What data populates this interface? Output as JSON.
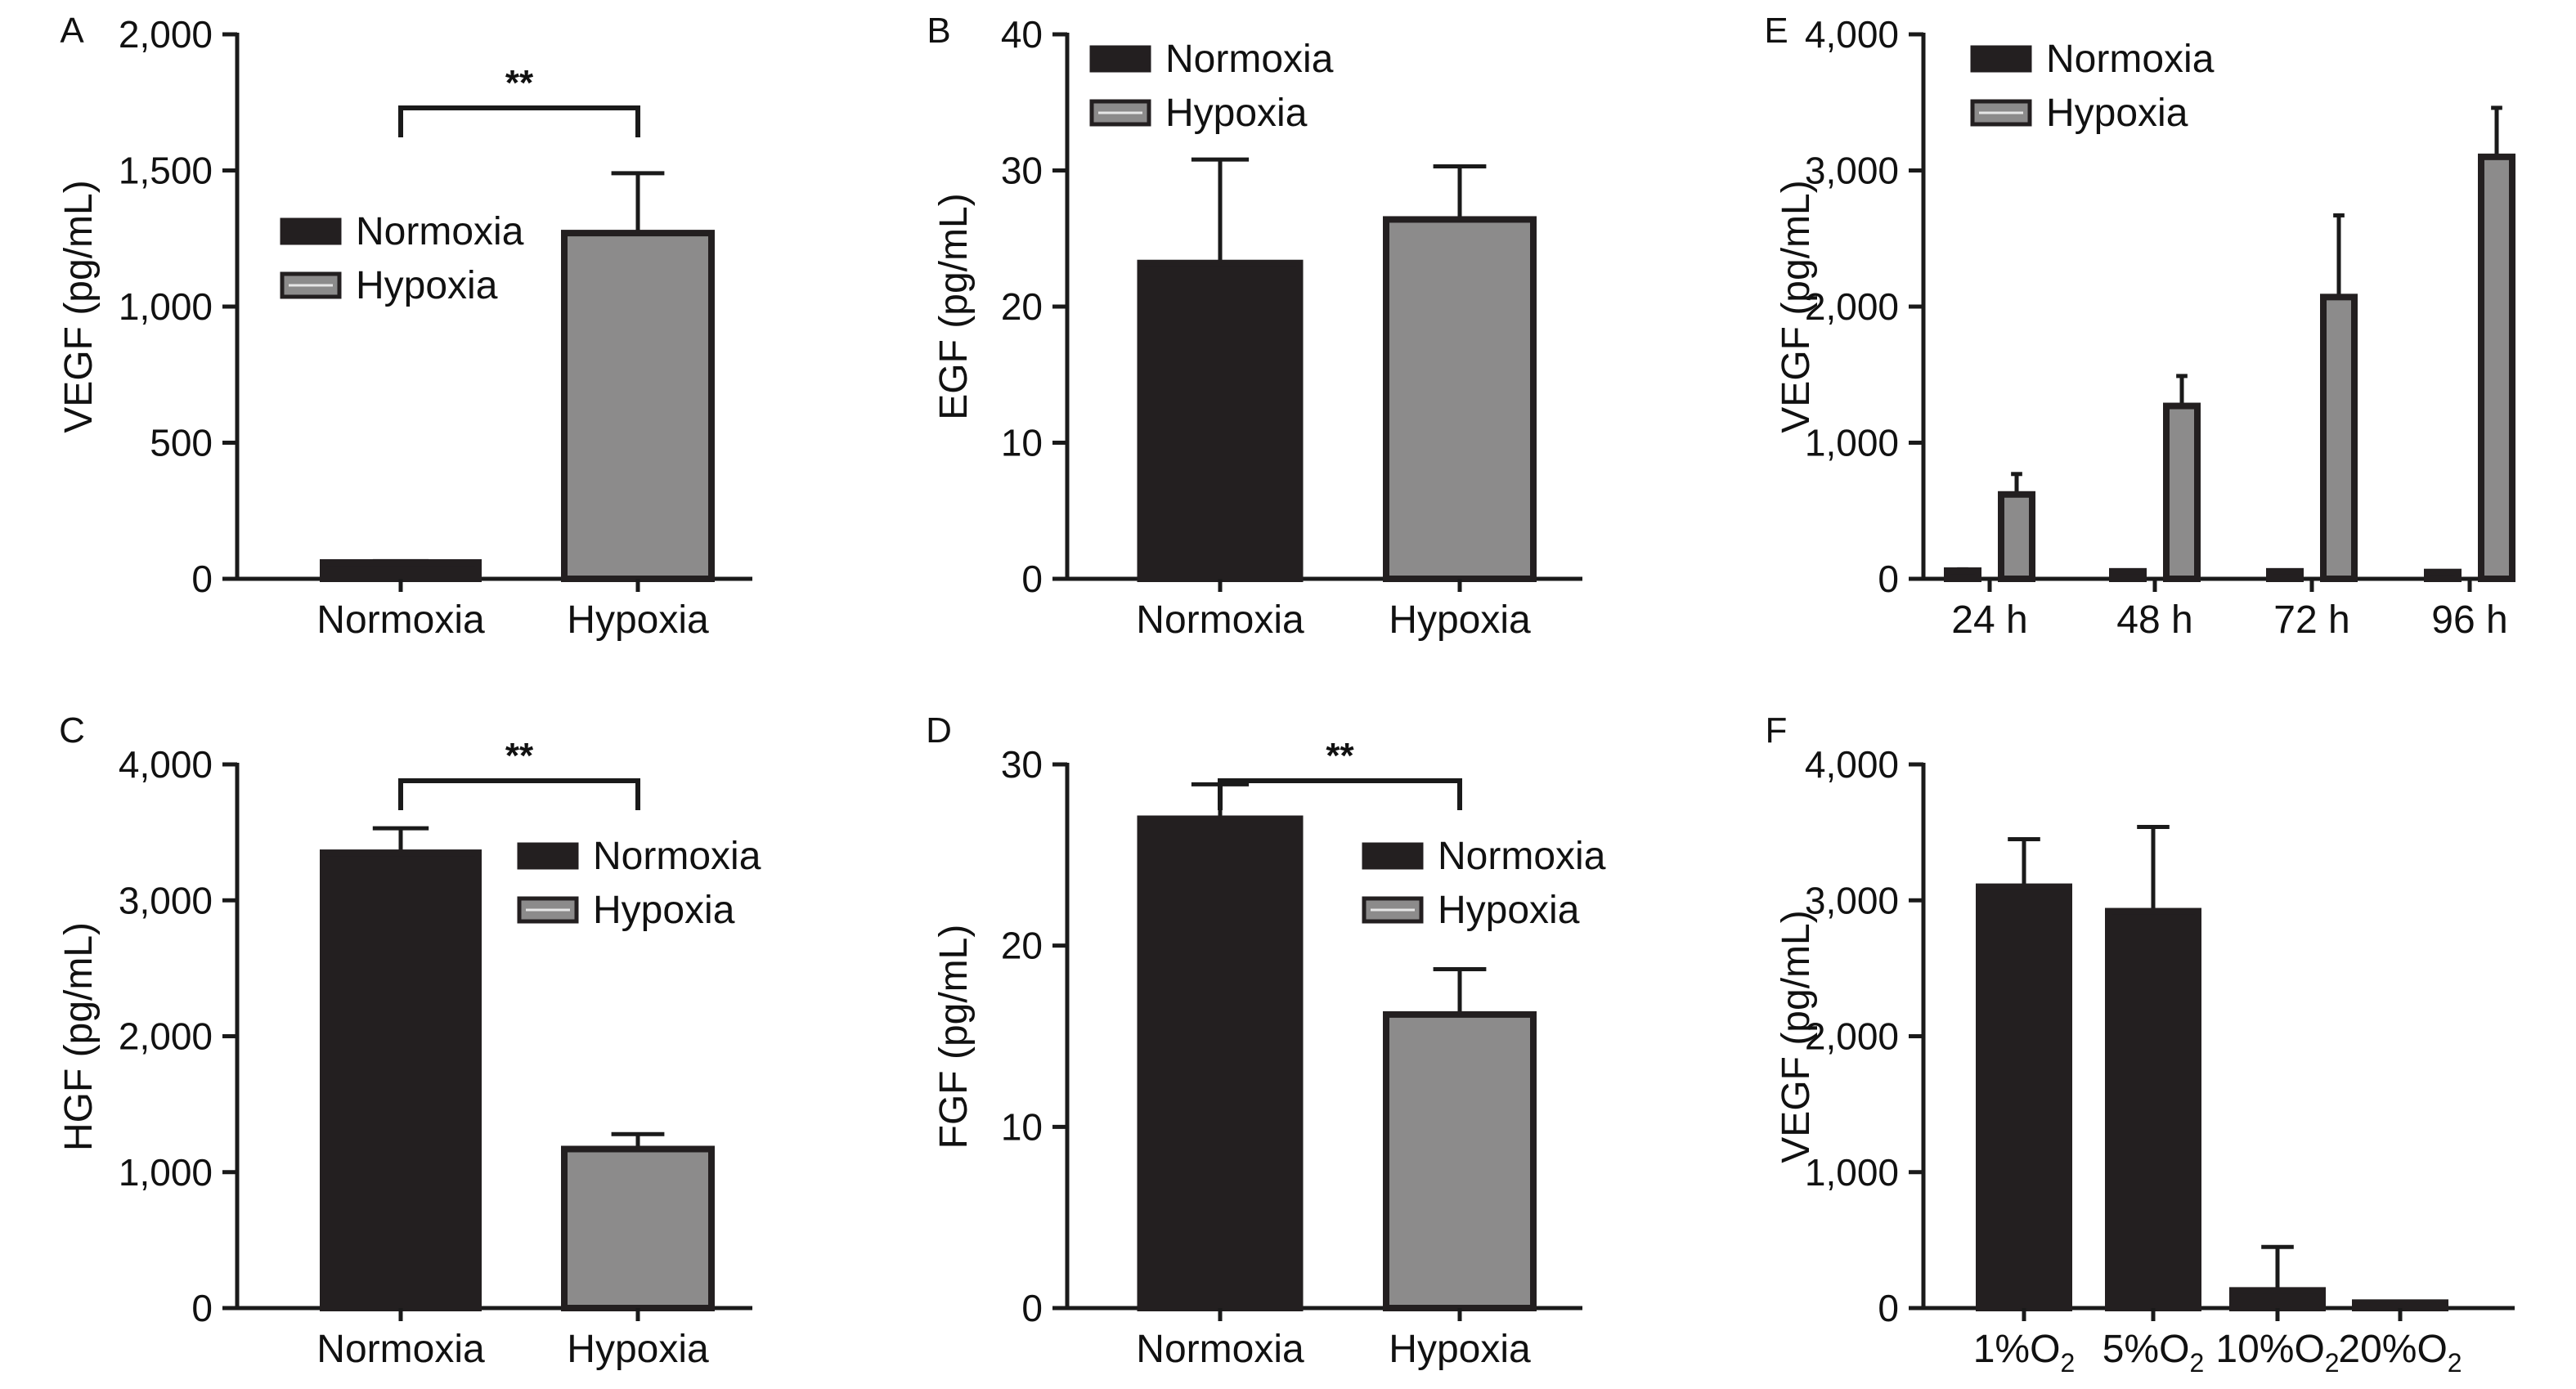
{
  "colors": {
    "dark_bar": "#231f20",
    "light_bar": "#8c8b8b",
    "outline": "#231f20"
  },
  "chart_data": [
    {
      "id": "A",
      "type": "bar",
      "letter": "A",
      "categories": [
        "Normoxia",
        "Hypoxia"
      ],
      "values": [
        60,
        1270
      ],
      "errors": [
        5,
        220
      ],
      "fills": [
        "dark",
        "light"
      ],
      "ylabel": "VEGF (pg/mL)",
      "ylim": [
        0,
        2000
      ],
      "yticks": [
        0,
        500,
        1000,
        1500,
        2000
      ],
      "ytick_labels": [
        "0",
        "500",
        "1,000",
        "1,500",
        "2,000"
      ],
      "legend": [
        "Normoxia",
        "Hypoxia"
      ],
      "legend_position": "center-left",
      "significance": {
        "label": "**",
        "between": [
          0,
          1
        ]
      },
      "grid": false
    },
    {
      "id": "B",
      "type": "bar",
      "letter": "B",
      "categories": [
        "Normoxia",
        "Hypoxia"
      ],
      "values": [
        23.2,
        26.4
      ],
      "errors": [
        7.6,
        3.9
      ],
      "fills": [
        "dark",
        "light"
      ],
      "ylabel": "EGF (pg/mL)",
      "ylim": [
        0,
        40
      ],
      "yticks": [
        0,
        10,
        20,
        30,
        40
      ],
      "ytick_labels": [
        "0",
        "10",
        "20",
        "30",
        "40"
      ],
      "legend": [
        "Normoxia",
        "Hypoxia"
      ],
      "legend_position": "top-left",
      "grid": false
    },
    {
      "id": "E",
      "type": "bar",
      "letter": "E",
      "categories": [
        "24 h",
        "48 h",
        "72 h",
        "96 h"
      ],
      "series": [
        {
          "name": "Normoxia",
          "values": [
            60,
            55,
            55,
            50
          ],
          "errors": [
            10,
            5,
            8,
            5
          ],
          "fill": "dark"
        },
        {
          "name": "Hypoxia",
          "values": [
            620,
            1270,
            2070,
            3100
          ],
          "errors": [
            150,
            220,
            600,
            360
          ],
          "fill": "light"
        }
      ],
      "ylabel": "VEGF (pg/mL)",
      "ylim": [
        0,
        4000
      ],
      "yticks": [
        0,
        1000,
        2000,
        3000,
        4000
      ],
      "ytick_labels": [
        "0",
        "1,000",
        "2,000",
        "3,000",
        "4,000"
      ],
      "legend": [
        "Normoxia",
        "Hypoxia"
      ],
      "legend_position": "top-left",
      "grid": false
    },
    {
      "id": "C",
      "type": "bar",
      "letter": "C",
      "categories": [
        "Normoxia",
        "Hypoxia"
      ],
      "values": [
        3350,
        1170
      ],
      "errors": [
        180,
        110
      ],
      "fills": [
        "dark",
        "light"
      ],
      "ylabel": "HGF (pg/mL)",
      "ylim": [
        0,
        4000
      ],
      "yticks": [
        0,
        1000,
        2000,
        3000,
        4000
      ],
      "ytick_labels": [
        "0",
        "1,000",
        "2,000",
        "3,000",
        "4,000"
      ],
      "legend": [
        "Normoxia",
        "Hypoxia"
      ],
      "legend_position": "center-right",
      "significance": {
        "label": "**",
        "between": [
          0,
          1
        ]
      },
      "grid": false
    },
    {
      "id": "D",
      "type": "bar",
      "letter": "D",
      "categories": [
        "Normoxia",
        "Hypoxia"
      ],
      "values": [
        27.0,
        16.2
      ],
      "errors": [
        1.9,
        2.5
      ],
      "fills": [
        "dark",
        "light"
      ],
      "ylabel": "FGF (pg/mL)",
      "ylim": [
        0,
        30
      ],
      "yticks": [
        0,
        10,
        20,
        30
      ],
      "ytick_labels": [
        "0",
        "10",
        "20",
        "30"
      ],
      "legend": [
        "Normoxia",
        "Hypoxia"
      ],
      "legend_position": "center-right",
      "significance": {
        "label": "**",
        "between": [
          0,
          1
        ]
      },
      "grid": false
    },
    {
      "id": "F",
      "type": "bar",
      "letter": "F",
      "categories": [
        {
          "base": "1%O",
          "sub": "2"
        },
        {
          "base": "5%O",
          "sub": "2"
        },
        {
          "base": "10%O",
          "sub": "2"
        },
        {
          "base": "20%O",
          "sub": "2"
        }
      ],
      "values": [
        3100,
        2920,
        130,
        40
      ],
      "errors": [
        350,
        620,
        320,
        0
      ],
      "fills": [
        "dark",
        "dark",
        "dark",
        "dark"
      ],
      "ylabel": "VEGF (pg/mL)",
      "ylim": [
        0,
        4000
      ],
      "yticks": [
        0,
        1000,
        2000,
        3000,
        4000
      ],
      "ytick_labels": [
        "0",
        "1,000",
        "2,000",
        "3,000",
        "4,000"
      ],
      "grid": false
    }
  ]
}
